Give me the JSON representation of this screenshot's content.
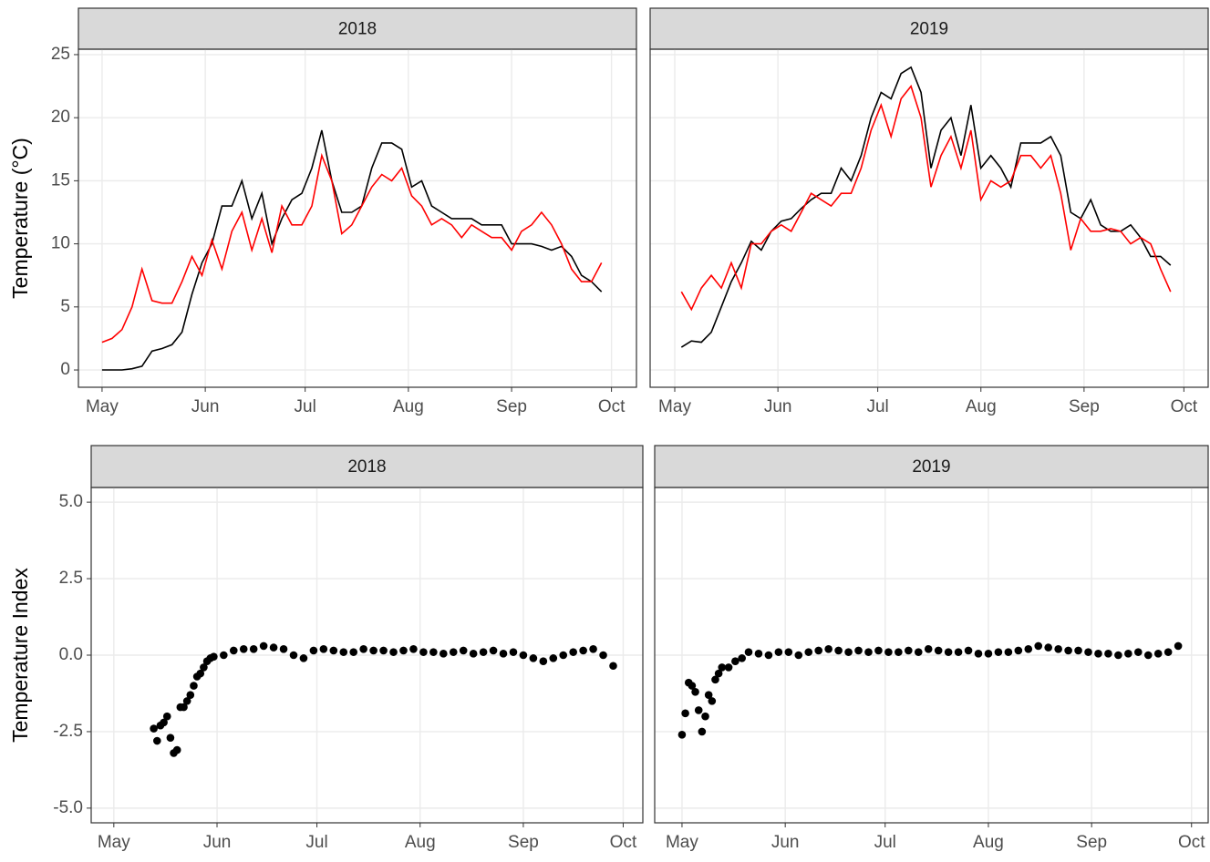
{
  "chart_data": [
    {
      "type": "line",
      "title": "2018",
      "ylabel": "Temperature (°C)",
      "x": [
        0,
        3,
        6,
        9,
        12,
        15,
        18,
        21,
        24,
        27,
        30,
        33,
        36,
        39,
        42,
        45,
        48,
        51,
        54,
        57,
        60,
        63,
        66,
        69,
        72,
        75,
        78,
        81,
        84,
        87,
        90,
        93,
        96,
        99,
        102,
        105,
        108,
        111,
        114,
        117,
        120,
        123,
        126,
        129,
        132,
        135,
        138,
        141,
        144,
        147,
        150
      ],
      "series": [
        {
          "color": "#000000",
          "values": [
            0,
            0,
            0,
            0.1,
            0.3,
            1.5,
            1.7,
            2,
            3,
            6,
            8.5,
            10,
            13,
            13,
            15,
            12,
            14,
            10,
            12,
            13.5,
            14,
            16,
            19,
            15,
            12.5,
            12.5,
            13,
            16,
            18,
            18,
            17.5,
            14.5,
            15,
            13,
            12.5,
            12,
            12,
            12,
            11.5,
            11.5,
            11.5,
            10,
            10,
            10,
            9.8,
            9.5,
            9.8,
            9,
            7.5,
            7,
            6.2
          ]
        },
        {
          "color": "#ff0000",
          "values": [
            2.2,
            2.5,
            3.2,
            5,
            8,
            5.5,
            5.3,
            5.3,
            7,
            9,
            7.5,
            10.3,
            8,
            11,
            12.5,
            9.5,
            12,
            9.3,
            13,
            11.5,
            11.5,
            13,
            17,
            15,
            10.8,
            11.5,
            13,
            14.5,
            15.5,
            15,
            16,
            13.8,
            13,
            11.5,
            12,
            11.5,
            10.5,
            11.5,
            11,
            10.5,
            10.5,
            9.5,
            11,
            11.5,
            12.5,
            11.5,
            10,
            8,
            7,
            7,
            8.5
          ]
        }
      ],
      "xlim": [
        -7.1,
        160.5
      ],
      "ylim": [
        -1.37,
        25.43
      ],
      "xticks": [
        {
          "value": 0,
          "label": "May"
        },
        {
          "value": 31,
          "label": "Jun"
        },
        {
          "value": 61,
          "label": "Jul"
        },
        {
          "value": 92,
          "label": "Aug"
        },
        {
          "value": 123,
          "label": "Sep"
        },
        {
          "value": 153,
          "label": "Oct"
        }
      ],
      "yticks": [
        0,
        5,
        10,
        15,
        20,
        25
      ],
      "grid": true
    },
    {
      "type": "line",
      "title": "2019",
      "x": [
        2,
        5,
        8,
        11,
        14,
        17,
        20,
        23,
        26,
        29,
        32,
        35,
        38,
        41,
        44,
        47,
        50,
        53,
        56,
        59,
        62,
        65,
        68,
        71,
        74,
        77,
        80,
        83,
        86,
        89,
        92,
        95,
        98,
        101,
        104,
        107,
        110,
        113,
        116,
        119,
        122,
        125,
        128,
        131,
        134,
        137,
        140,
        143,
        146,
        149
      ],
      "series": [
        {
          "color": "#000000",
          "values": [
            1.8,
            2.3,
            2.2,
            3,
            5,
            7,
            8.5,
            10.2,
            9.5,
            11,
            11.8,
            12,
            12.8,
            13.5,
            14,
            14,
            16,
            15,
            17,
            20,
            22,
            21.5,
            23.5,
            24,
            22,
            16,
            19,
            20,
            17,
            21,
            16,
            17,
            16,
            14.5,
            18,
            18,
            18,
            18.5,
            17,
            12.5,
            12,
            13.5,
            11.5,
            11,
            11,
            11.5,
            10.5,
            9,
            9,
            8.3
          ]
        },
        {
          "color": "#ff0000",
          "values": [
            6.2,
            4.8,
            6.5,
            7.5,
            6.5,
            8.5,
            6.5,
            10,
            10,
            11,
            11.5,
            11,
            12.5,
            14,
            13.5,
            13,
            14,
            14,
            16,
            19,
            21,
            18.5,
            21.5,
            22.5,
            20,
            14.5,
            17,
            18.5,
            16,
            19,
            13.5,
            15,
            14.5,
            15,
            17,
            17,
            16,
            17,
            14,
            9.5,
            12,
            11,
            11,
            11.2,
            11,
            10,
            10.5,
            10,
            8,
            6.2
          ]
        }
      ],
      "xlim": [
        -7.4,
        160.3
      ],
      "ylim": [
        -1.37,
        25.43
      ],
      "xticks": [
        {
          "value": 0,
          "label": "May"
        },
        {
          "value": 31,
          "label": "Jun"
        },
        {
          "value": 61,
          "label": "Jul"
        },
        {
          "value": 92,
          "label": "Aug"
        },
        {
          "value": 123,
          "label": "Sep"
        },
        {
          "value": 153,
          "label": "Oct"
        }
      ],
      "grid": true
    },
    {
      "type": "scatter",
      "title": "2018",
      "ylabel": "Temperature Index",
      "color": "#000000",
      "x": [
        12,
        13,
        14,
        15,
        16,
        17,
        18,
        19,
        20,
        21,
        22,
        23,
        24,
        25,
        26,
        27,
        28,
        29,
        30,
        33,
        36,
        39,
        42,
        45,
        48,
        51,
        54,
        57,
        60,
        63,
        66,
        69,
        72,
        75,
        78,
        81,
        84,
        87,
        90,
        93,
        96,
        99,
        102,
        105,
        108,
        111,
        114,
        117,
        120,
        123,
        126,
        129,
        132,
        135,
        138,
        141,
        144,
        147,
        150
      ],
      "values": [
        -2.4,
        -2.8,
        -2.3,
        -2.2,
        -2.0,
        -2.7,
        -3.2,
        -3.1,
        -1.7,
        -1.7,
        -1.5,
        -1.3,
        -1.0,
        -0.7,
        -0.6,
        -0.4,
        -0.2,
        -0.1,
        -0.05,
        0,
        0.15,
        0.2,
        0.2,
        0.3,
        0.25,
        0.2,
        0,
        -0.1,
        0.15,
        0.2,
        0.15,
        0.1,
        0.1,
        0.2,
        0.15,
        0.15,
        0.1,
        0.15,
        0.2,
        0.1,
        0.1,
        0.05,
        0.1,
        0.15,
        0.05,
        0.1,
        0.15,
        0.05,
        0.1,
        0,
        -0.1,
        -0.2,
        -0.1,
        0,
        0.1,
        0.15,
        0.2,
        0,
        -0.35
      ],
      "xlim": [
        -6.8,
        158.9
      ],
      "ylim": [
        -5.48,
        5.48
      ],
      "xticks": [
        {
          "value": 0,
          "label": "May"
        },
        {
          "value": 31,
          "label": "Jun"
        },
        {
          "value": 61,
          "label": "Jul"
        },
        {
          "value": 92,
          "label": "Aug"
        },
        {
          "value": 123,
          "label": "Sep"
        },
        {
          "value": 153,
          "label": "Oct"
        }
      ],
      "yticks": [
        {
          "value": -5,
          "label": "-5.0"
        },
        -2.5,
        {
          "value": 0,
          "label": "0.0"
        },
        2.5,
        {
          "value": 5,
          "label": "5.0"
        }
      ],
      "grid": true
    },
    {
      "type": "scatter",
      "title": "2019",
      "color": "#000000",
      "x": [
        0,
        1,
        2,
        3,
        4,
        5,
        6,
        7,
        8,
        9,
        10,
        11,
        12,
        14,
        16,
        18,
        20,
        23,
        26,
        29,
        32,
        35,
        38,
        41,
        44,
        47,
        50,
        53,
        56,
        59,
        62,
        65,
        68,
        71,
        74,
        77,
        80,
        83,
        86,
        89,
        92,
        95,
        98,
        101,
        104,
        107,
        110,
        113,
        116,
        119,
        122,
        125,
        128,
        131,
        134,
        137,
        140,
        143,
        146,
        149
      ],
      "values": [
        -2.6,
        -1.9,
        -0.9,
        -1.0,
        -1.2,
        -1.8,
        -2.5,
        -2.0,
        -1.3,
        -1.5,
        -0.8,
        -0.6,
        -0.4,
        -0.4,
        -0.2,
        -0.1,
        0.1,
        0.05,
        0,
        0.1,
        0.1,
        0,
        0.1,
        0.15,
        0.2,
        0.15,
        0.1,
        0.15,
        0.1,
        0.15,
        0.1,
        0.1,
        0.15,
        0.1,
        0.2,
        0.15,
        0.1,
        0.1,
        0.15,
        0.05,
        0.05,
        0.1,
        0.1,
        0.15,
        0.2,
        0.3,
        0.25,
        0.2,
        0.15,
        0.15,
        0.1,
        0.05,
        0.05,
        0,
        0.05,
        0.1,
        0,
        0.05,
        0.1,
        0.3
      ],
      "xlim": [
        -8.2,
        158
      ],
      "ylim": [
        -5.48,
        5.48
      ],
      "xticks": [
        {
          "value": 0,
          "label": "May"
        },
        {
          "value": 31,
          "label": "Jun"
        },
        {
          "value": 61,
          "label": "Jul"
        },
        {
          "value": 92,
          "label": "Aug"
        },
        {
          "value": 123,
          "label": "Sep"
        },
        {
          "value": 153,
          "label": "Oct"
        }
      ],
      "grid": true
    }
  ]
}
